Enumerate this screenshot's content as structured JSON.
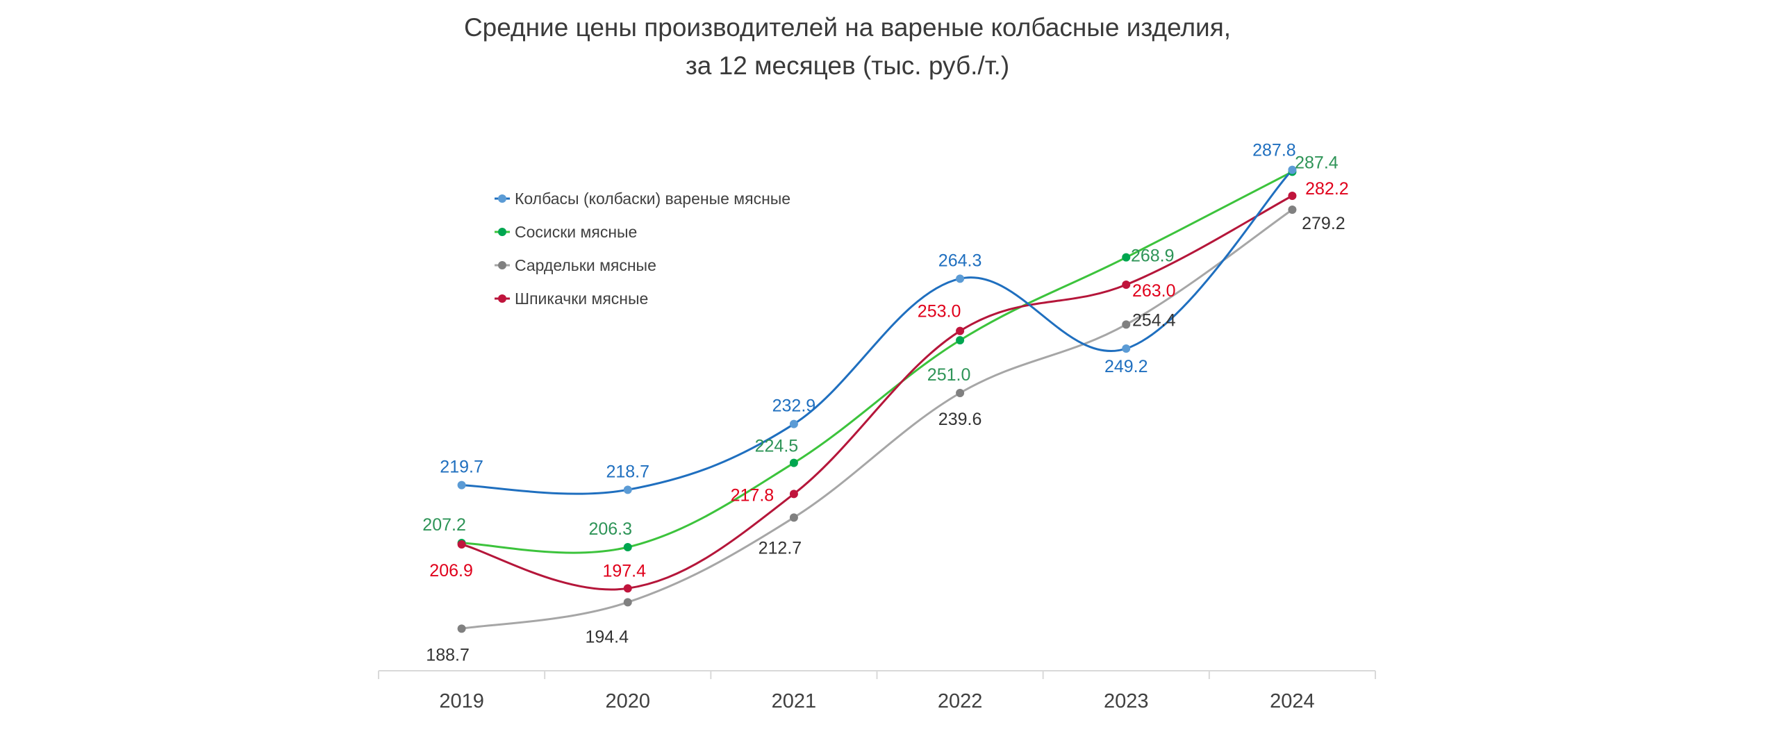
{
  "chart_data": {
    "type": "line",
    "title": "Средние цены производителей на вареные колбасные изделия,",
    "subtitle": "за 12 месяцев (тыс. руб./т.)",
    "xlabel": "",
    "ylabel": "",
    "categories": [
      "2019",
      "2020",
      "2021",
      "2022",
      "2023",
      "2024"
    ],
    "ylim": [
      185,
      290
    ],
    "grid": false,
    "legend_position": "top-left",
    "smooth": true,
    "series": [
      {
        "name": "Колбасы (колбаски) вареные мясные",
        "values": [
          219.7,
          218.7,
          232.9,
          264.3,
          249.2,
          287.8
        ],
        "labels": [
          "219.7",
          "218.7",
          "232.9",
          "264.3",
          "249.2",
          "287.8"
        ],
        "line_color": "#1f6fbf",
        "marker_color": "#5b9bd5",
        "label_color": "#1f6fbf"
      },
      {
        "name": "Сосиски мясные",
        "values": [
          207.2,
          206.3,
          224.5,
          251.0,
          268.9,
          287.4
        ],
        "labels": [
          "207.2",
          "206.3",
          "224.5",
          "251.0",
          "268.9",
          "287.4"
        ],
        "line_color": "#3cc33c",
        "marker_color": "#00a650",
        "label_color": "#2e9457"
      },
      {
        "name": "Сардельки мясные",
        "values": [
          188.7,
          194.4,
          212.7,
          239.6,
          254.4,
          279.2
        ],
        "labels": [
          "188.7",
          "194.4",
          "212.7",
          "239.6",
          "254.4",
          "279.2"
        ],
        "line_color": "#a6a6a6",
        "marker_color": "#808080",
        "label_color": "#333333"
      },
      {
        "name": "Шпикачки мясные",
        "values": [
          206.9,
          197.4,
          217.8,
          253.0,
          263.0,
          282.2
        ],
        "labels": [
          "206.9",
          "197.4",
          "217.8",
          "253.0",
          "263.0",
          "282.2"
        ],
        "line_color": "#b5163a",
        "marker_color": "#c0143c",
        "label_color": "#e0001b"
      }
    ]
  }
}
